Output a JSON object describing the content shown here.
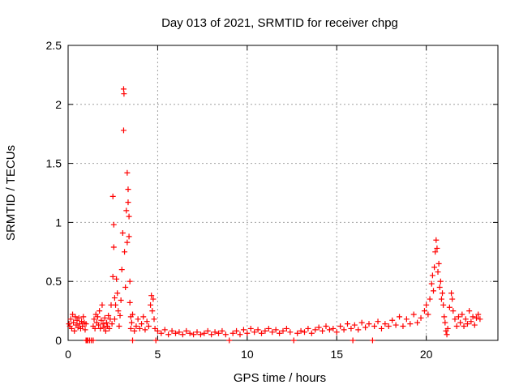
{
  "chart_data": {
    "type": "scatter",
    "title": "Day 013 of 2021, SRMTID for receiver chpg",
    "xlabel": "GPS time / hours",
    "ylabel": "SRMTID / TECUs",
    "xlim": [
      0,
      24
    ],
    "ylim": [
      0,
      2.5
    ],
    "x_ticks": [
      0,
      5,
      10,
      15,
      20
    ],
    "x_tick_labels": [
      "0",
      "5",
      "10",
      "15",
      "20"
    ],
    "y_ticks": [
      0,
      0.5,
      1,
      1.5,
      2,
      2.5
    ],
    "y_tick_labels": [
      "0",
      "0.5",
      "1",
      "1.5",
      "2",
      "2.5"
    ],
    "grid": true,
    "marker": "+",
    "series": [
      {
        "name": "SRMTID",
        "color": "#ff0000",
        "points": [
          [
            0.05,
            0.14
          ],
          [
            0.1,
            0.12
          ],
          [
            0.15,
            0.18
          ],
          [
            0.2,
            0.1
          ],
          [
            0.25,
            0.22
          ],
          [
            0.3,
            0.15
          ],
          [
            0.35,
            0.08
          ],
          [
            0.4,
            0.2
          ],
          [
            0.45,
            0.13
          ],
          [
            0.5,
            0.17
          ],
          [
            0.55,
            0.11
          ],
          [
            0.6,
            0.19
          ],
          [
            0.65,
            0.14
          ],
          [
            0.7,
            0.1
          ],
          [
            0.75,
            0.16
          ],
          [
            0.8,
            0.12
          ],
          [
            0.85,
            0.2
          ],
          [
            0.9,
            0.15
          ],
          [
            0.95,
            0.09
          ],
          [
            1.0,
            0.14
          ],
          [
            1.0,
            0.0
          ],
          [
            1.05,
            0.0
          ],
          [
            1.1,
            0.0
          ],
          [
            1.2,
            0.0
          ],
          [
            1.3,
            0.0
          ],
          [
            1.4,
            0.0
          ],
          [
            1.4,
            0.12
          ],
          [
            1.45,
            0.18
          ],
          [
            1.5,
            0.1
          ],
          [
            1.55,
            0.22
          ],
          [
            1.6,
            0.15
          ],
          [
            1.65,
            0.2
          ],
          [
            1.7,
            0.13
          ],
          [
            1.75,
            0.25
          ],
          [
            1.8,
            0.1
          ],
          [
            1.85,
            0.17
          ],
          [
            1.9,
            0.3
          ],
          [
            1.95,
            0.14
          ],
          [
            2.0,
            0.11
          ],
          [
            2.05,
            0.19
          ],
          [
            2.1,
            0.08
          ],
          [
            2.15,
            0.15
          ],
          [
            2.2,
            0.12
          ],
          [
            2.25,
            0.21
          ],
          [
            2.3,
            0.1
          ],
          [
            2.35,
            0.18
          ],
          [
            2.4,
            0.3
          ],
          [
            2.45,
            0.14
          ],
          [
            2.5,
            0.54
          ],
          [
            2.5,
            1.22
          ],
          [
            2.55,
            0.98
          ],
          [
            2.55,
            0.79
          ],
          [
            2.6,
            0.36
          ],
          [
            2.6,
            0.18
          ],
          [
            2.65,
            0.3
          ],
          [
            2.7,
            0.52
          ],
          [
            2.75,
            0.4
          ],
          [
            2.8,
            0.25
          ],
          [
            2.85,
            0.12
          ],
          [
            2.9,
            0.21
          ],
          [
            2.95,
            0.34
          ],
          [
            3.0,
            0.6
          ],
          [
            3.05,
            0.91
          ],
          [
            3.1,
            1.78
          ],
          [
            3.1,
            2.13
          ],
          [
            3.12,
            2.09
          ],
          [
            3.15,
            0.75
          ],
          [
            3.2,
            0.45
          ],
          [
            3.25,
            1.1
          ],
          [
            3.3,
            1.42
          ],
          [
            3.3,
            0.83
          ],
          [
            3.35,
            1.28
          ],
          [
            3.35,
            1.17
          ],
          [
            3.4,
            1.05
          ],
          [
            3.4,
            0.88
          ],
          [
            3.45,
            0.5
          ],
          [
            3.45,
            0.32
          ],
          [
            3.5,
            0.2
          ],
          [
            3.5,
            0.1
          ],
          [
            3.55,
            0.15
          ],
          [
            3.6,
            0.0
          ],
          [
            3.6,
            0.22
          ],
          [
            3.7,
            0.08
          ],
          [
            3.8,
            0.12
          ],
          [
            3.9,
            0.18
          ],
          [
            4.0,
            0.1
          ],
          [
            4.1,
            0.14
          ],
          [
            4.2,
            0.2
          ],
          [
            4.3,
            0.09
          ],
          [
            4.4,
            0.16
          ],
          [
            4.5,
            0.12
          ],
          [
            4.6,
            0.3
          ],
          [
            4.65,
            0.38
          ],
          [
            4.7,
            0.25
          ],
          [
            4.75,
            0.35
          ],
          [
            4.8,
            0.18
          ],
          [
            4.85,
            0.1
          ],
          [
            4.9,
            0.0
          ],
          [
            5.0,
            0.08
          ],
          [
            5.2,
            0.06
          ],
          [
            5.4,
            0.09
          ],
          [
            5.6,
            0.05
          ],
          [
            5.8,
            0.08
          ],
          [
            6.0,
            0.06
          ],
          [
            6.2,
            0.07
          ],
          [
            6.4,
            0.05
          ],
          [
            6.6,
            0.08
          ],
          [
            6.8,
            0.06
          ],
          [
            7.0,
            0.05
          ],
          [
            7.2,
            0.07
          ],
          [
            7.4,
            0.05
          ],
          [
            7.6,
            0.06
          ],
          [
            7.8,
            0.08
          ],
          [
            8.0,
            0.05
          ],
          [
            8.2,
            0.07
          ],
          [
            8.4,
            0.06
          ],
          [
            8.6,
            0.08
          ],
          [
            8.8,
            0.05
          ],
          [
            9.0,
            0.0
          ],
          [
            9.2,
            0.06
          ],
          [
            9.4,
            0.08
          ],
          [
            9.6,
            0.05
          ],
          [
            9.8,
            0.09
          ],
          [
            10.0,
            0.06
          ],
          [
            10.2,
            0.1
          ],
          [
            10.4,
            0.07
          ],
          [
            10.6,
            0.09
          ],
          [
            10.8,
            0.06
          ],
          [
            11.0,
            0.08
          ],
          [
            11.2,
            0.1
          ],
          [
            11.4,
            0.07
          ],
          [
            11.6,
            0.09
          ],
          [
            11.8,
            0.06
          ],
          [
            12.0,
            0.08
          ],
          [
            12.2,
            0.1
          ],
          [
            12.4,
            0.07
          ],
          [
            12.6,
            0.0
          ],
          [
            12.8,
            0.06
          ],
          [
            13.0,
            0.08
          ],
          [
            13.2,
            0.07
          ],
          [
            13.4,
            0.1
          ],
          [
            13.6,
            0.06
          ],
          [
            13.8,
            0.09
          ],
          [
            14.0,
            0.11
          ],
          [
            14.2,
            0.08
          ],
          [
            14.4,
            0.12
          ],
          [
            14.6,
            0.09
          ],
          [
            14.8,
            0.1
          ],
          [
            15.0,
            0.07
          ],
          [
            15.2,
            0.12
          ],
          [
            15.4,
            0.09
          ],
          [
            15.6,
            0.14
          ],
          [
            15.8,
            0.1
          ],
          [
            15.9,
            0.0
          ],
          [
            16.0,
            0.13
          ],
          [
            16.2,
            0.09
          ],
          [
            16.4,
            0.15
          ],
          [
            16.6,
            0.11
          ],
          [
            16.8,
            0.14
          ],
          [
            17.0,
            0.0
          ],
          [
            17.1,
            0.12
          ],
          [
            17.3,
            0.16
          ],
          [
            17.5,
            0.1
          ],
          [
            17.7,
            0.14
          ],
          [
            17.9,
            0.12
          ],
          [
            18.1,
            0.17
          ],
          [
            18.3,
            0.13
          ],
          [
            18.5,
            0.2
          ],
          [
            18.7,
            0.12
          ],
          [
            18.9,
            0.18
          ],
          [
            19.1,
            0.14
          ],
          [
            19.3,
            0.22
          ],
          [
            19.5,
            0.15
          ],
          [
            19.7,
            0.19
          ],
          [
            19.9,
            0.25
          ],
          [
            20.0,
            0.3
          ],
          [
            20.1,
            0.22
          ],
          [
            20.2,
            0.35
          ],
          [
            20.3,
            0.48
          ],
          [
            20.35,
            0.55
          ],
          [
            20.4,
            0.42
          ],
          [
            20.45,
            0.62
          ],
          [
            20.5,
            0.75
          ],
          [
            20.55,
            0.85
          ],
          [
            20.6,
            0.78
          ],
          [
            20.65,
            0.58
          ],
          [
            20.7,
            0.65
          ],
          [
            20.75,
            0.45
          ],
          [
            20.8,
            0.5
          ],
          [
            20.85,
            0.35
          ],
          [
            20.9,
            0.4
          ],
          [
            20.95,
            0.3
          ],
          [
            21.0,
            0.2
          ],
          [
            21.05,
            0.15
          ],
          [
            21.1,
            0.08
          ],
          [
            21.15,
            0.05
          ],
          [
            21.2,
            0.1
          ],
          [
            21.3,
            0.28
          ],
          [
            21.4,
            0.4
          ],
          [
            21.45,
            0.35
          ],
          [
            21.5,
            0.25
          ],
          [
            21.6,
            0.18
          ],
          [
            21.7,
            0.12
          ],
          [
            21.8,
            0.2
          ],
          [
            21.9,
            0.15
          ],
          [
            22.0,
            0.22
          ],
          [
            22.1,
            0.12
          ],
          [
            22.2,
            0.18
          ],
          [
            22.3,
            0.14
          ],
          [
            22.4,
            0.25
          ],
          [
            22.5,
            0.16
          ],
          [
            22.6,
            0.2
          ],
          [
            22.7,
            0.13
          ],
          [
            22.8,
            0.19
          ],
          [
            22.9,
            0.22
          ],
          [
            23.0,
            0.18
          ]
        ]
      }
    ]
  }
}
